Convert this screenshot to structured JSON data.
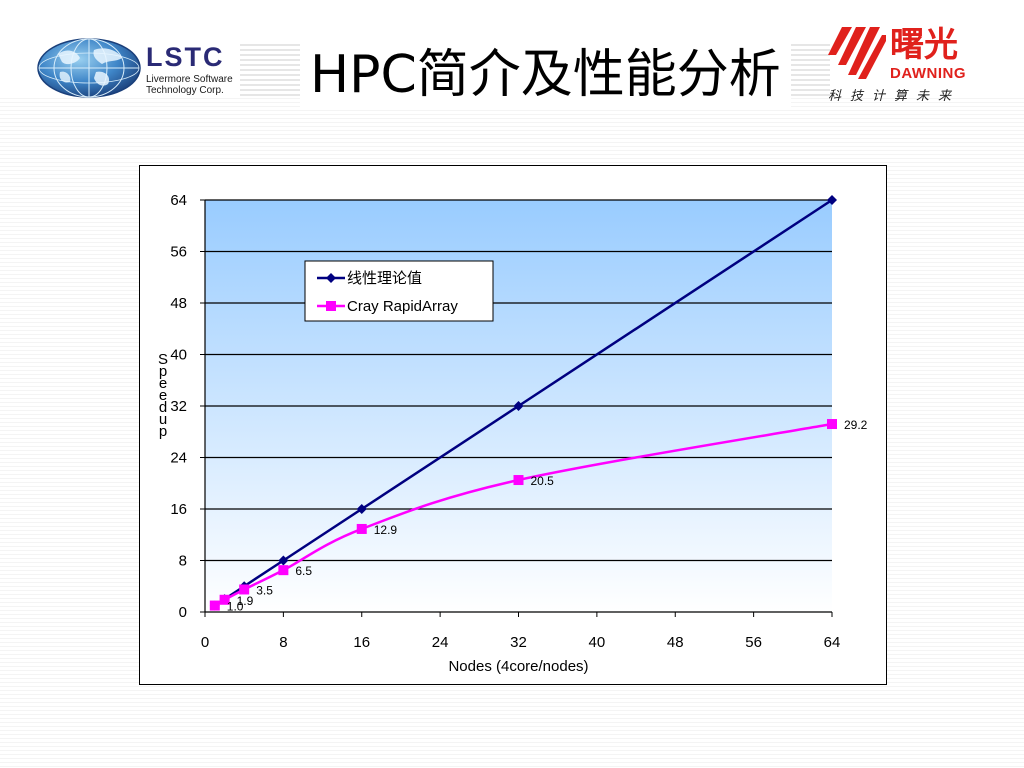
{
  "header": {
    "title": "HPC简介及性能分析",
    "lstc": {
      "name": "LSTC",
      "line1": "Livermore Software",
      "line2": "Technology Corp."
    },
    "dawning": {
      "cn": "曙光",
      "en": "DAWNING",
      "slogan": "科技计算未来"
    }
  },
  "colors": {
    "linear": "#000080",
    "cray": "#ff00ff",
    "plot_top": "#99ccff",
    "plot_bottom": "#ffffff",
    "brand_red": "#e0211c",
    "lstc_blue": "#2a2a75"
  },
  "chart_data": {
    "type": "line",
    "xlabel": "Nodes (4core/nodes)",
    "ylabel": "Speedup",
    "xlim": [
      0,
      64
    ],
    "ylim": [
      0,
      64
    ],
    "xticks": [
      0,
      8,
      16,
      24,
      32,
      40,
      48,
      56,
      64
    ],
    "yticks": [
      0,
      8,
      16,
      24,
      32,
      40,
      48,
      56,
      64
    ],
    "grid": "horizontal",
    "legend_position": "upper-left-inside",
    "series": [
      {
        "name": "线性理论值",
        "marker": "diamond",
        "color": "#000080",
        "x": [
          1,
          2,
          4,
          8,
          16,
          32,
          64
        ],
        "y": [
          1,
          2,
          4,
          8,
          16,
          32,
          64
        ]
      },
      {
        "name": "Cray RapidArray",
        "marker": "square",
        "color": "#ff00ff",
        "x": [
          1,
          2,
          4,
          8,
          16,
          32,
          64
        ],
        "y": [
          1.0,
          1.9,
          3.5,
          6.5,
          12.9,
          20.5,
          29.2
        ],
        "labels": [
          "1.0",
          "1.9",
          "3.5",
          "6.5",
          "12.9",
          "20.5",
          "29.2"
        ]
      }
    ]
  }
}
